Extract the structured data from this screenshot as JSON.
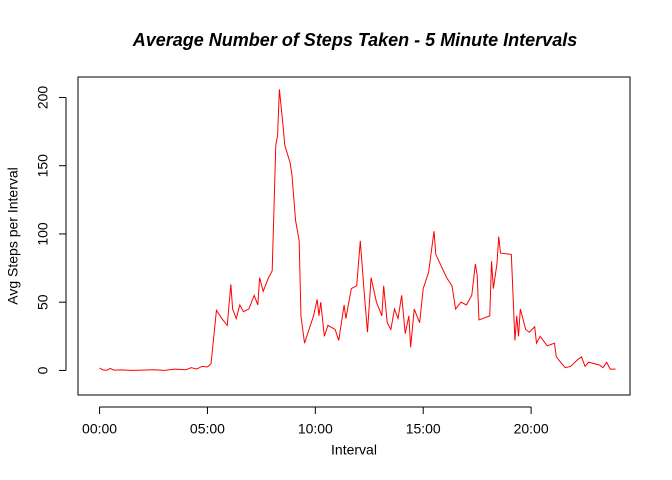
{
  "chart_data": {
    "type": "line",
    "title": "Average Number of Steps Taken - 5 Minute Intervals",
    "x_label": "Interval",
    "y_label": "Avg Steps per Interval",
    "x": [
      0,
      10,
      20,
      30,
      40,
      60,
      90,
      120,
      150,
      180,
      210,
      240,
      255,
      270,
      285,
      300,
      310,
      325,
      340,
      355,
      365,
      370,
      380,
      390,
      400,
      415,
      430,
      440,
      445,
      455,
      470,
      480,
      490,
      495,
      500,
      510,
      515,
      530,
      535,
      545,
      555,
      560,
      570,
      585,
      595,
      605,
      610,
      615,
      625,
      635,
      655,
      665,
      680,
      685,
      700,
      715,
      725,
      735,
      745,
      755,
      770,
      785,
      790,
      800,
      810,
      820,
      830,
      840,
      850,
      860,
      865,
      875,
      890,
      900,
      915,
      930,
      935,
      965,
      980,
      990,
      1005,
      1020,
      1035,
      1045,
      1050,
      1055,
      1085,
      1090,
      1095,
      1105,
      1110,
      1115,
      1145,
      1155,
      1160,
      1165,
      1170,
      1185,
      1195,
      1210,
      1215,
      1225,
      1245,
      1265,
      1270,
      1285,
      1295,
      1310,
      1330,
      1340,
      1350,
      1360,
      1390,
      1400,
      1410,
      1420,
      1435
    ],
    "series": [
      {
        "name": "Avg Steps per Interval",
        "color": "#ff0000",
        "values": [
          1.7,
          0.3,
          0.1,
          1.5,
          0.2,
          0.4,
          0,
          0.2,
          0.5,
          0,
          1,
          0.5,
          2,
          1,
          3,
          2.5,
          5,
          44,
          38,
          33,
          63,
          45,
          38,
          48,
          43,
          45,
          55,
          48,
          68,
          58,
          68,
          73,
          165,
          172,
          206,
          180,
          165,
          152,
          143,
          110,
          95,
          40,
          20,
          32,
          40,
          52,
          40,
          50,
          25,
          33,
          30,
          22,
          48,
          38,
          60,
          62,
          95,
          60,
          28,
          68,
          50,
          40,
          62,
          35,
          30,
          45,
          38,
          55,
          27,
          40,
          17,
          45,
          35,
          60,
          72,
          102,
          85,
          68,
          62,
          45,
          50,
          48,
          55,
          78,
          70,
          37,
          40,
          80,
          60,
          78,
          98,
          86,
          85,
          22,
          40,
          25,
          45,
          30,
          28,
          32,
          20,
          25,
          18,
          20,
          10,
          5,
          2,
          3,
          8,
          10,
          3,
          6,
          4,
          2,
          6,
          1,
          1
        ]
      }
    ],
    "xlim": [
      -60,
      1475
    ],
    "ylim": [
      -18,
      215
    ],
    "xticks": [
      {
        "value": 0,
        "label": "00:00"
      },
      {
        "value": 300,
        "label": "05:00"
      },
      {
        "value": 600,
        "label": "10:00"
      },
      {
        "value": 900,
        "label": "15:00"
      },
      {
        "value": 1200,
        "label": "20:00"
      }
    ],
    "yticks": [
      0,
      50,
      100,
      150,
      200
    ]
  }
}
